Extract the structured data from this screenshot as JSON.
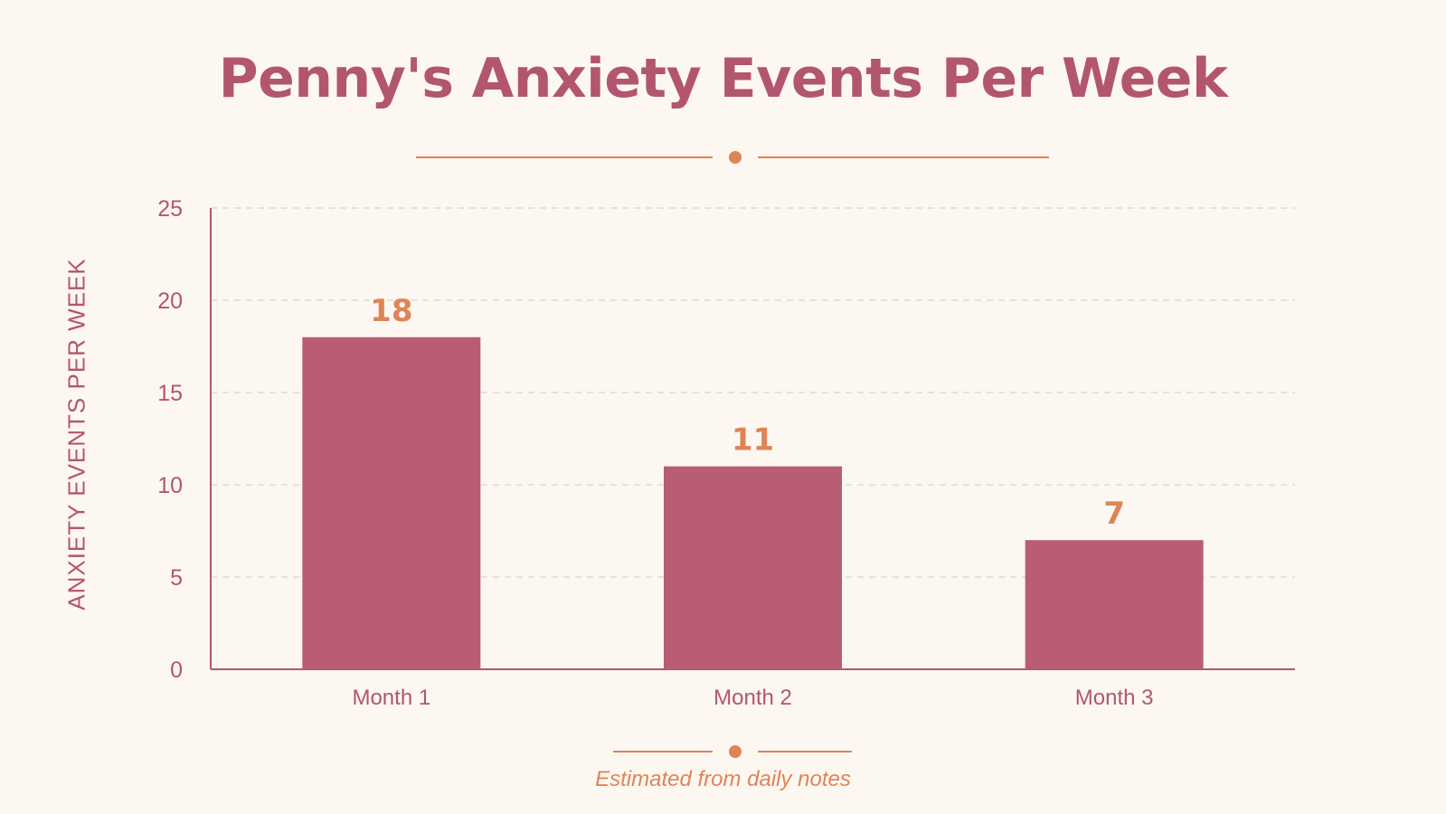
{
  "colors": {
    "background": "#fdf7f1",
    "bar": "#b85d73",
    "title": "#b2566f",
    "accent": "#df8457",
    "axis": "#b2566f",
    "grid": "#e2d8d2"
  },
  "chart_data": {
    "type": "bar",
    "title": "Penny's Anxiety Events Per Week",
    "ylabel": "ANXIETY EVENTS PER WEEK",
    "xlabel": "",
    "categories": [
      "Month 1",
      "Month 2",
      "Month 3"
    ],
    "values": [
      18,
      11,
      7
    ],
    "data_labels": [
      "18",
      "11",
      "7"
    ],
    "ylim": [
      0,
      25
    ],
    "yticks": [
      0,
      5,
      10,
      15,
      20,
      25
    ],
    "grid": true,
    "legend": "none"
  },
  "footer": {
    "caption": "Estimated from daily notes"
  }
}
